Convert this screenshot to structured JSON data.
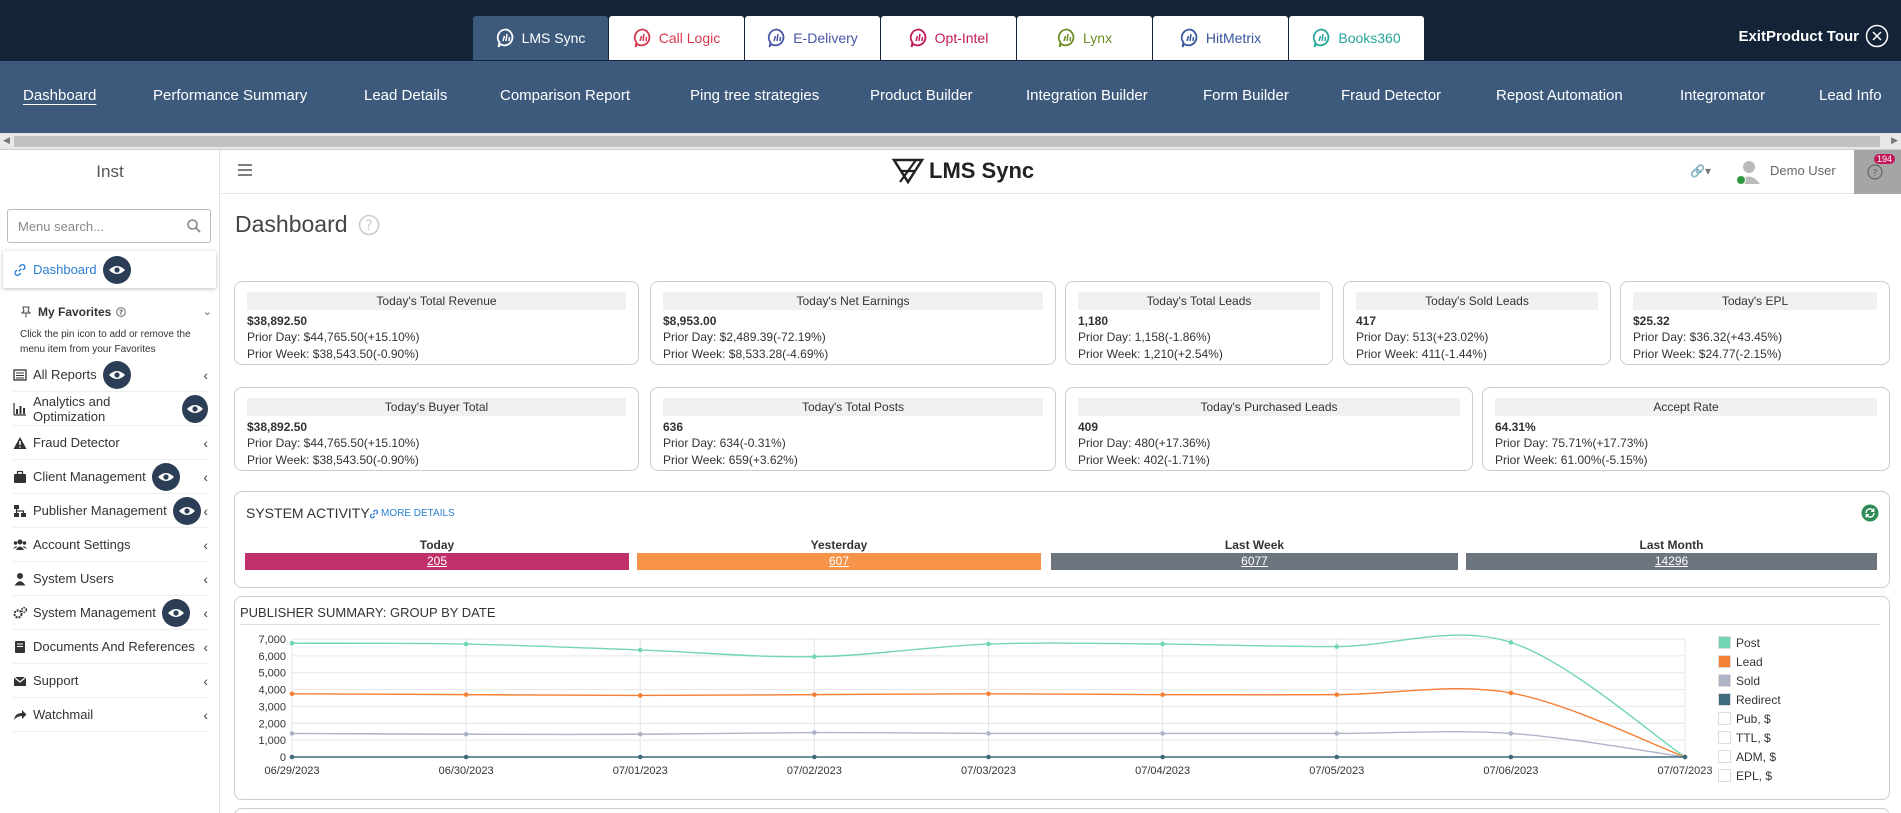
{
  "product_tabs": [
    {
      "label": "LMS Sync",
      "color": "#ffffff",
      "active": true
    },
    {
      "label": "Call Logic",
      "color": "#d6374d",
      "active": false
    },
    {
      "label": "E-Delivery",
      "color": "#4a56a6",
      "active": false
    },
    {
      "label": "Opt-Intel",
      "color": "#c2185b",
      "active": false
    },
    {
      "label": "Lynx",
      "color": "#6b8e23",
      "active": false
    },
    {
      "label": "HitMetrix",
      "color": "#34569c",
      "active": false
    },
    {
      "label": "Books360",
      "color": "#26a69a",
      "active": false
    }
  ],
  "exit_tour": {
    "label": "ExitProduct Tour"
  },
  "main_nav": [
    "Dashboard",
    "Performance Summary",
    "Lead Details",
    "Comparison Report",
    "Ping tree strategies",
    "Product Builder",
    "Integration Builder",
    "Form Builder",
    "Fraud Detector",
    "Repost Automation",
    "Integromator",
    "Lead Info"
  ],
  "sidebar": {
    "inst": "Inst",
    "search_placeholder": "Menu search...",
    "dashboard": "Dashboard",
    "favorites_title": "My Favorites",
    "favorites_note": "Click the pin icon to add or remove the menu item from your Favorites",
    "items": [
      {
        "label": "All Reports",
        "icon": "list-icon",
        "eye": true
      },
      {
        "label": "Analytics and Optimization",
        "icon": "bar-chart-icon",
        "eye": true
      },
      {
        "label": "Fraud Detector",
        "icon": "warning-icon",
        "eye": false
      },
      {
        "label": "Client Management",
        "icon": "briefcase-icon",
        "eye": true
      },
      {
        "label": "Publisher Management",
        "icon": "network-icon",
        "eye": true
      },
      {
        "label": "Account Settings",
        "icon": "users-icon",
        "eye": false
      },
      {
        "label": "System Users",
        "icon": "user-icon",
        "eye": false
      },
      {
        "label": "System Management",
        "icon": "gears-icon",
        "eye": true
      },
      {
        "label": "Documents And References",
        "icon": "book-icon",
        "eye": false
      },
      {
        "label": "Support",
        "icon": "envelope-icon",
        "eye": false
      },
      {
        "label": "Watchmail",
        "icon": "share-icon",
        "eye": false
      }
    ]
  },
  "header": {
    "logo": "LMS Sync",
    "user": "Demo User",
    "notifications": "194"
  },
  "page_title": "Dashboard",
  "cards_row1": [
    {
      "title": "Today's Total Revenue",
      "value": "$38,892.50",
      "prior_day": "Prior Day: $44,765.50(+15.10%)",
      "prior_week": "Prior Week: $38,543.50(-0.90%)"
    },
    {
      "title": "Today's Net Earnings",
      "value": "$8,953.00",
      "prior_day": "Prior Day: $2,489.39(-72.19%)",
      "prior_week": "Prior Week: $8,533.28(-4.69%)"
    },
    {
      "title": "Today's Total Leads",
      "value": "1,180",
      "prior_day": "Prior Day: 1,158(-1.86%)",
      "prior_week": "Prior Week: 1,210(+2.54%)"
    },
    {
      "title": "Today's Sold Leads",
      "value": "417",
      "prior_day": "Prior Day: 513(+23.02%)",
      "prior_week": "Prior Week: 411(-1.44%)"
    },
    {
      "title": "Today's EPL",
      "value": "$25.32",
      "prior_day": "Prior Day: $36.32(+43.45%)",
      "prior_week": "Prior Week: $24.77(-2.15%)"
    }
  ],
  "cards_row2": [
    {
      "title": "Today's Buyer Total",
      "value": "$38,892.50",
      "prior_day": "Prior Day: $44,765.50(+15.10%)",
      "prior_week": "Prior Week: $38,543.50(-0.90%)"
    },
    {
      "title": "Today's Total Posts",
      "value": "636",
      "prior_day": "Prior Day: 634(-0.31%)",
      "prior_week": "Prior Week: 659(+3.62%)"
    },
    {
      "title": "Today's Purchased Leads",
      "value": "409",
      "prior_day": "Prior Day: 480(+17.36%)",
      "prior_week": "Prior Week: 402(-1.71%)"
    },
    {
      "title": "Accept Rate",
      "value": "64.31%",
      "prior_day": "Prior Day: 75.71%(+17.73%)",
      "prior_week": "Prior Week: 61.00%(-5.15%)"
    }
  ],
  "system_activity": {
    "title": "SYSTEM ACTIVITY",
    "more": "MORE DETAILS",
    "columns": [
      {
        "label": "Today",
        "value": "205",
        "color": "#c0306a"
      },
      {
        "label": "Yesterday",
        "value": "607",
        "color": "#f7944a"
      },
      {
        "label": "Last Week",
        "value": "6077",
        "color": "#6c757d"
      },
      {
        "label": "Last Month",
        "value": "14296",
        "color": "#6c757d"
      }
    ]
  },
  "chart_data": {
    "type": "line",
    "title": "PUBLISHER SUMMARY: GROUP BY DATE",
    "x": [
      "06/29/2023",
      "06/30/2023",
      "07/01/2023",
      "07/02/2023",
      "07/03/2023",
      "07/04/2023",
      "07/05/2023",
      "07/06/2023",
      "07/07/2023"
    ],
    "yticks": [
      "0",
      "1,000",
      "2,000",
      "3,000",
      "4,000",
      "5,000",
      "6,000",
      "7,000"
    ],
    "ylim": [
      0,
      7000
    ],
    "grid": true,
    "legend_position": "right",
    "series": [
      {
        "name": "Post",
        "color": "#72d6b4",
        "values": [
          6750,
          6700,
          6350,
          5950,
          6700,
          6700,
          6550,
          6800,
          0
        ]
      },
      {
        "name": "Lead",
        "color": "#f57f32",
        "values": [
          3750,
          3700,
          3650,
          3700,
          3750,
          3700,
          3700,
          3800,
          0
        ]
      },
      {
        "name": "Sold",
        "color": "#aeb3c8",
        "values": [
          1400,
          1350,
          1350,
          1450,
          1400,
          1400,
          1400,
          1400,
          0
        ]
      },
      {
        "name": "Redirect",
        "color": "#3f6b7c",
        "values": [
          0,
          0,
          0,
          0,
          0,
          0,
          0,
          0,
          0
        ]
      }
    ],
    "extra_legend": [
      "Pub, $",
      "TTL, $",
      "ADM, $",
      "EPL, $"
    ]
  }
}
